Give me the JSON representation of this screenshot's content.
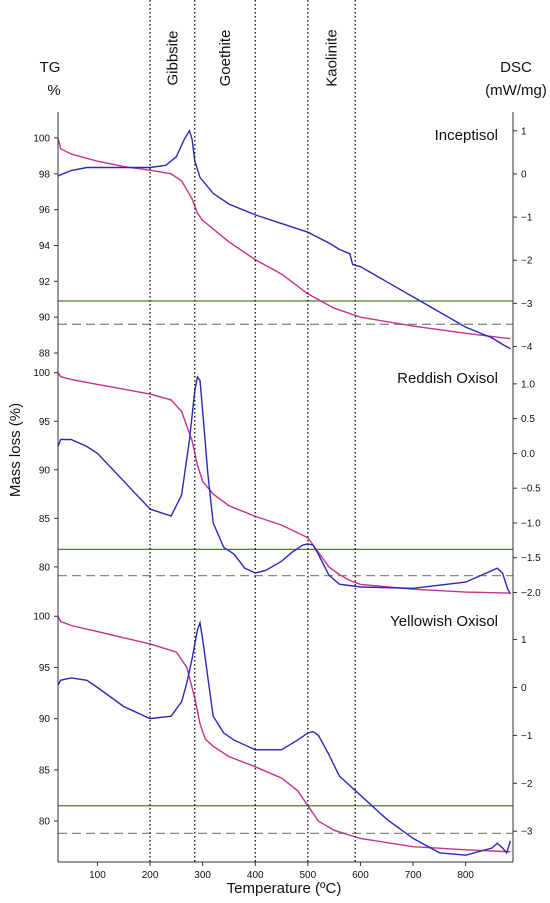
{
  "texts": {
    "tg_label": "TG",
    "tg_unit": "%",
    "dsc_label": "DSC",
    "dsc_unit": "(mW/mg)",
    "y_axis_label": "Mass loss (%)",
    "x_axis_label": "Temperature (ºC)",
    "mineral_labels": [
      "Gibbsite",
      "Goethite",
      "Kaolinite"
    ]
  },
  "colors": {
    "tg": "#c6328c",
    "dsc": "#2a2ab8",
    "solid_ref": "#4e7f2f",
    "dashed_ref": "#8a8a78",
    "guide": "#111111"
  },
  "chart_data": {
    "type": "line",
    "xlabel": "Temperature (ºC)",
    "ylabel": "Mass loss (%)",
    "x_ticks": [
      100,
      200,
      300,
      400,
      500,
      600,
      700,
      800
    ],
    "xlim": [
      25,
      890
    ],
    "vertical_guides": [
      200,
      285,
      400,
      500,
      590
    ],
    "mineral_regions": [
      {
        "label": "Gibbsite",
        "from": 200,
        "to": 285
      },
      {
        "label": "Goethite",
        "from": 285,
        "to": 400
      },
      {
        "label": "Kaolinite",
        "from": 500,
        "to": 590
      }
    ],
    "panels": [
      {
        "title": "Inceptisol",
        "tg_ylim": [
          88,
          101
        ],
        "tg_ticks": [
          88,
          90,
          92,
          94,
          96,
          98,
          100
        ],
        "dsc_ylim": [
          -4.15,
          1.25
        ],
        "dsc_ticks": [
          1,
          0,
          -1,
          -2,
          -3,
          -4
        ],
        "dsc_tick_labels": [
          "1",
          "0",
          "−1",
          "−2",
          "−3",
          "−4"
        ],
        "tg": {
          "x": [
            25,
            30,
            50,
            100,
            150,
            200,
            240,
            260,
            280,
            290,
            300,
            350,
            400,
            450,
            500,
            550,
            600,
            700,
            800,
            885
          ],
          "y": [
            100,
            99.4,
            99.1,
            98.7,
            98.4,
            98.2,
            98.0,
            97.6,
            96.6,
            95.8,
            95.4,
            94.2,
            93.2,
            92.4,
            91.3,
            90.5,
            90.0,
            89.5,
            89.1,
            88.8
          ]
        },
        "dsc": {
          "x": [
            25,
            30,
            50,
            80,
            100,
            150,
            200,
            230,
            250,
            265,
            275,
            280,
            285,
            295,
            320,
            350,
            400,
            450,
            500,
            540,
            560,
            580,
            585,
            600,
            650,
            700,
            750,
            800,
            850,
            870,
            885
          ],
          "y": [
            -0.05,
            -0.02,
            0.08,
            0.15,
            0.15,
            0.15,
            0.15,
            0.2,
            0.4,
            0.8,
            1.0,
            0.8,
            0.3,
            -0.08,
            -0.45,
            -0.7,
            -0.95,
            -1.15,
            -1.35,
            -1.6,
            -1.75,
            -1.85,
            -2.1,
            -2.15,
            -2.5,
            -2.85,
            -3.2,
            -3.55,
            -3.8,
            -3.95,
            -4.05
          ]
        },
        "solid_ref": 90.9,
        "dashed_ref": 89.6
      },
      {
        "title": "Reddish Oxisol",
        "tg_ylim": [
          77,
          101
        ],
        "tg_ticks": [
          80,
          85,
          90,
          95,
          100
        ],
        "dsc_ylim": [
          -2.05,
          1.3
        ],
        "dsc_ticks": [
          1.0,
          0.5,
          0.0,
          -0.5,
          -1.0,
          -1.5,
          -2.0
        ],
        "dsc_tick_labels": [
          "1.0",
          "0.5",
          "0.0",
          "−0.5",
          "−1.0",
          "−1.5",
          "−2.0"
        ],
        "tg": {
          "x": [
            25,
            30,
            50,
            100,
            150,
            200,
            240,
            260,
            280,
            290,
            300,
            320,
            350,
            400,
            450,
            500,
            520,
            540,
            560,
            580,
            600,
            700,
            800,
            885
          ],
          "y": [
            100,
            99.6,
            99.3,
            98.8,
            98.3,
            97.8,
            97.2,
            96.0,
            93.0,
            90.5,
            88.8,
            87.5,
            86.3,
            85.2,
            84.3,
            83.0,
            81.5,
            80.0,
            79.2,
            78.6,
            78.2,
            77.7,
            77.4,
            77.3
          ]
        },
        "dsc": {
          "x": [
            25,
            30,
            50,
            80,
            100,
            150,
            200,
            240,
            260,
            275,
            285,
            290,
            295,
            300,
            310,
            320,
            340,
            360,
            380,
            400,
            420,
            450,
            470,
            490,
            500,
            510,
            520,
            540,
            560,
            600,
            700,
            800,
            860,
            870,
            880,
            885
          ],
          "y": [
            0.1,
            0.2,
            0.2,
            0.1,
            0.0,
            -0.4,
            -0.8,
            -0.9,
            -0.6,
            0.2,
            0.9,
            1.1,
            1.05,
            0.6,
            -0.3,
            -1.0,
            -1.35,
            -1.45,
            -1.65,
            -1.72,
            -1.68,
            -1.55,
            -1.42,
            -1.32,
            -1.3,
            -1.32,
            -1.45,
            -1.75,
            -1.88,
            -1.92,
            -1.94,
            -1.85,
            -1.65,
            -1.72,
            -1.95,
            -2.02
          ]
        },
        "solid_ref": 81.8,
        "dashed_ref": 79.1
      },
      {
        "title": "Yellowish Oxisol",
        "tg_ylim": [
          76.2,
          101
        ],
        "tg_ticks": [
          80,
          85,
          90,
          95,
          100
        ],
        "dsc_ylim": [
          -3.6,
          1.7
        ],
        "dsc_ticks": [
          1,
          0,
          -1,
          -2,
          -3
        ],
        "dsc_tick_labels": [
          "1",
          "0",
          "−1",
          "−2",
          "−3"
        ],
        "tg": {
          "x": [
            25,
            30,
            50,
            100,
            150,
            200,
            250,
            270,
            285,
            295,
            305,
            320,
            350,
            400,
            450,
            480,
            500,
            520,
            550,
            600,
            700,
            800,
            885
          ],
          "y": [
            100,
            99.5,
            99.1,
            98.5,
            97.9,
            97.3,
            96.5,
            95.0,
            92.0,
            89.5,
            88.0,
            87.3,
            86.3,
            85.3,
            84.2,
            83.0,
            81.5,
            80.0,
            79.1,
            78.3,
            77.5,
            77.2,
            77.0
          ]
        },
        "dsc": {
          "x": [
            25,
            30,
            50,
            80,
            100,
            150,
            200,
            240,
            260,
            270,
            280,
            290,
            295,
            300,
            310,
            320,
            340,
            360,
            400,
            450,
            480,
            500,
            510,
            520,
            540,
            560,
            600,
            650,
            700,
            750,
            800,
            850,
            860,
            870,
            878,
            885
          ],
          "y": [
            0.05,
            0.15,
            0.2,
            0.15,
            0.0,
            -0.4,
            -0.65,
            -0.6,
            -0.3,
            0.1,
            0.6,
            1.2,
            1.35,
            1.0,
            0.2,
            -0.6,
            -0.95,
            -1.1,
            -1.3,
            -1.3,
            -1.1,
            -0.95,
            -0.92,
            -1.0,
            -1.4,
            -1.85,
            -2.25,
            -2.75,
            -3.15,
            -3.45,
            -3.5,
            -3.35,
            -3.25,
            -3.35,
            -3.45,
            -3.2
          ]
        },
        "solid_ref": 81.5,
        "dashed_ref": 78.8
      }
    ]
  }
}
